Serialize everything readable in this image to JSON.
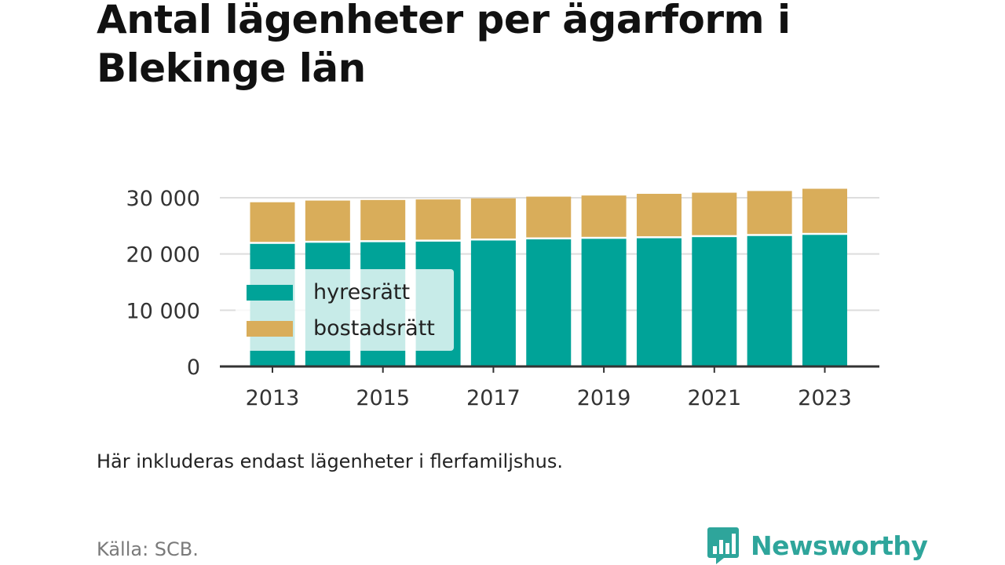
{
  "title": "Antal lägenheter per ägarform i Blekinge län",
  "note": "Här inkluderas endast lägenheter i flerfamiljshus.",
  "source": "Källa: SCB.",
  "brand": {
    "name": "Newsworthy",
    "icon": "newsworthy-logo-icon",
    "color": "#2ea59b"
  },
  "colors": {
    "hyresratt": "#00a398",
    "bostadsratt": "#d9ad5a",
    "grid": "#dddddd",
    "axis": "#333333"
  },
  "chart_data": {
    "type": "bar",
    "stacked": true,
    "categories": [
      "2013",
      "2014",
      "2015",
      "2016",
      "2017",
      "2018",
      "2019",
      "2020",
      "2021",
      "2022",
      "2023"
    ],
    "x_tick_labels": [
      "2013",
      "2015",
      "2017",
      "2019",
      "2021",
      "2023"
    ],
    "series": [
      {
        "name": "hyresrätt",
        "values": [
          21800,
          22000,
          22100,
          22200,
          22400,
          22600,
          22700,
          22800,
          23000,
          23200,
          23400
        ]
      },
      {
        "name": "bostadsrätt",
        "values": [
          7400,
          7500,
          7500,
          7500,
          7500,
          7600,
          7700,
          7900,
          7900,
          8000,
          8200
        ]
      }
    ],
    "y_ticks": [
      0,
      10000,
      20000,
      30000
    ],
    "y_tick_labels": [
      "0",
      "10 000",
      "20 000",
      "30 000"
    ],
    "ylim": [
      0,
      30000
    ],
    "grid": true,
    "legend_position": "bottom-left"
  }
}
